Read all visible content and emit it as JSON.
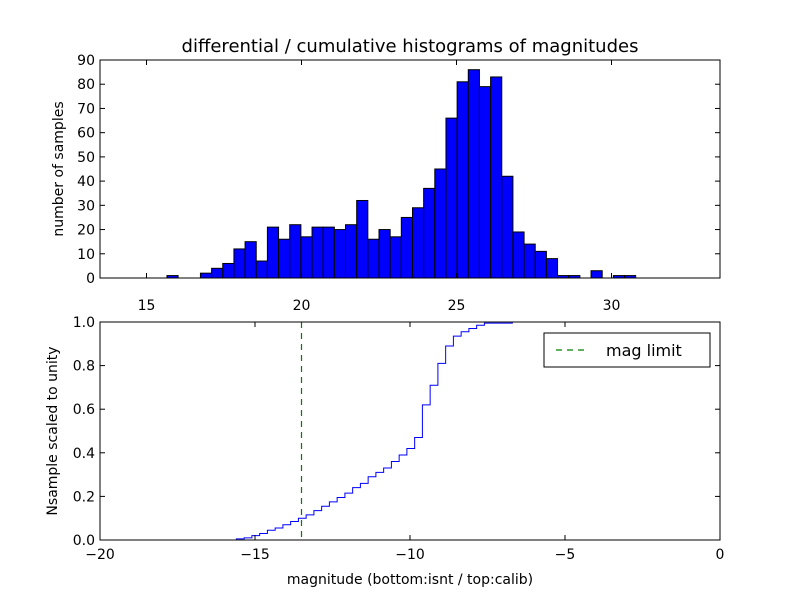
{
  "chart_data": [
    {
      "type": "bar",
      "panel": "top",
      "title": "differential / cumulative histograms of magnitudes",
      "ylabel": "number of samples",
      "xlim": [
        13.5,
        33.5
      ],
      "ylim": [
        0,
        90
      ],
      "bin_width": 0.36,
      "bin_start": 15.3,
      "values": [
        0,
        1,
        0,
        0,
        2,
        4,
        6,
        12,
        15,
        7,
        21,
        16,
        22,
        17,
        21,
        21,
        20,
        22,
        32,
        16,
        20,
        17,
        25,
        29,
        37,
        45,
        66,
        81,
        86,
        79,
        83,
        42,
        19,
        14,
        11,
        8,
        1,
        1,
        0,
        3,
        0,
        1,
        1
      ],
      "xticks": [
        "15",
        "20",
        "25",
        "30"
      ],
      "xtick_values": [
        15,
        20,
        25,
        30
      ],
      "yticks": [
        "0",
        "10",
        "20",
        "30",
        "40",
        "50",
        "60",
        "70",
        "80",
        "90"
      ],
      "ytick_values": [
        0,
        10,
        20,
        30,
        40,
        50,
        60,
        70,
        80,
        90
      ],
      "color": "#0000ff"
    },
    {
      "type": "line",
      "panel": "bottom",
      "xlabel": "magnitude (bottom:isnt / top:calib)",
      "ylabel": "Nsample scaled to unity",
      "xlim": [
        -20,
        0
      ],
      "ylim": [
        0,
        1.0
      ],
      "series": [
        {
          "name": "cumulative",
          "style": "steps",
          "color": "#0000ff",
          "x": [
            -20.0,
            -15.6,
            -15.35,
            -15.1,
            -14.85,
            -14.6,
            -14.35,
            -14.1,
            -13.85,
            -13.6,
            -13.35,
            -13.1,
            -12.85,
            -12.6,
            -12.35,
            -12.1,
            -11.85,
            -11.6,
            -11.35,
            -11.1,
            -10.85,
            -10.6,
            -10.35,
            -10.1,
            -9.85,
            -9.6,
            -9.35,
            -9.1,
            -8.85,
            -8.6,
            -8.35,
            -8.1,
            -7.85,
            -7.6,
            -6.7,
            -0.05
          ],
          "y": [
            0,
            0.005,
            0.01,
            0.02,
            0.03,
            0.045,
            0.055,
            0.07,
            0.085,
            0.1,
            0.115,
            0.135,
            0.155,
            0.175,
            0.195,
            0.215,
            0.24,
            0.26,
            0.29,
            0.31,
            0.33,
            0.36,
            0.39,
            0.42,
            0.47,
            0.62,
            0.71,
            0.81,
            0.89,
            0.935,
            0.955,
            0.97,
            0.985,
            0.995,
            1.0,
            1.0
          ]
        },
        {
          "name": "mag limit",
          "style": "dashed-vertical",
          "color": "#008000",
          "x_value": -13.5
        }
      ],
      "legend": {
        "entries": [
          "mag limit"
        ],
        "placement": "top-right"
      },
      "xticks": [
        "−20",
        "−15",
        "−10",
        "−5",
        "0"
      ],
      "xtick_values": [
        -20,
        -15,
        -10,
        -5,
        0
      ],
      "yticks": [
        "0.0",
        "0.2",
        "0.4",
        "0.6",
        "0.8",
        "1.0"
      ],
      "ytick_values": [
        0,
        0.2,
        0.4,
        0.6,
        0.8,
        1.0
      ]
    }
  ]
}
